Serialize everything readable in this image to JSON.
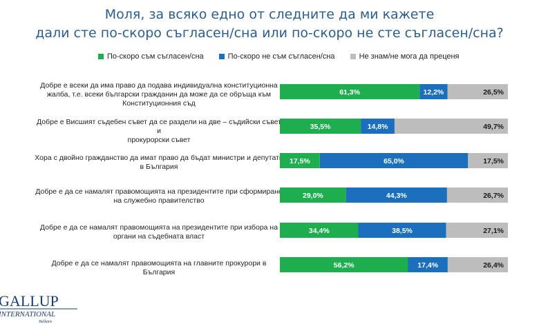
{
  "title_line1": "Моля, за всяко едно от следните да ми кажете",
  "title_line2": "дали сте по-скоро съгласен/сна или по-скоро не сте съгласен/сна?",
  "chart_data": {
    "type": "bar",
    "orientation": "horizontal",
    "stacked": true,
    "legend_position": "top",
    "categories": [
      "Добре е всеки да има право да подава индивидуална конституционна жалба, т.е. всеки български гражданин да може да се обръща към Конституционния съд",
      "Добре е Висшият съдебен съвет да се раздели на две – съдийски съвет и прокурорски съвет",
      "Хора с двойно гражданство да имат право да бъдат министри и депутати в България",
      "Добре е да се намалят правомощията на президентите при сформиране на служебно правителство",
      "Добре е да се намалят правомощията на президентите при избора на органи на съдебната власт",
      "Добре е да се намалят правомощията на главните прокурори в България"
    ],
    "series": [
      {
        "name": "По-скоро съм съгласен/сна",
        "color": "#1fae4f",
        "values": [
          61.3,
          35.5,
          17.5,
          29.0,
          34.4,
          56.2
        ],
        "labels": [
          "61,3%",
          "35,5%",
          "17,5%",
          "29,0%",
          "34,4%",
          "56,2%"
        ]
      },
      {
        "name": "По-скоро не съм съгласен/сна",
        "color": "#1b6fbd",
        "values": [
          12.2,
          14.8,
          65.0,
          44.3,
          38.5,
          17.4
        ],
        "labels": [
          "12,2%",
          "14,8%",
          "65,0%",
          "44,3%",
          "38,5%",
          "17,4%"
        ]
      },
      {
        "name": "Не знам/не мога да преценя",
        "color": "#bdbdbd",
        "values": [
          26.5,
          49.7,
          17.5,
          26.7,
          27.1,
          26.4
        ],
        "labels": [
          "26,5%",
          "49,7%",
          "17,5%",
          "26,7%",
          "27,1%",
          "26,4%"
        ]
      }
    ]
  },
  "category_label_lines": [
    [
      "Добре е всеки да има право да подава индивидуална конституционна",
      "жалба, т.е. всеки български гражданин да може да се обръща към",
      "Конституционния съд"
    ],
    [
      "Добре е Висшият съдебен съвет да се раздели на две – съдийски съвет и",
      "прокурорски съвет"
    ],
    [
      "Хора с двойно гражданство да имат право да бъдат министри и депутати",
      "в България"
    ],
    [
      "Добре е да се намалят правомощията на президентите при сформиране",
      "на служебно правителство"
    ],
    [
      "Добре е да се намалят правомощията на президентите при избора на",
      "органи на съдебната власт"
    ],
    [
      "Добре е да се намалят правомощията на главните прокурори в България"
    ]
  ],
  "logo": {
    "line1": "GALLUP",
    "line2": "INTERNATIONAL",
    "line3": "Balkans"
  }
}
